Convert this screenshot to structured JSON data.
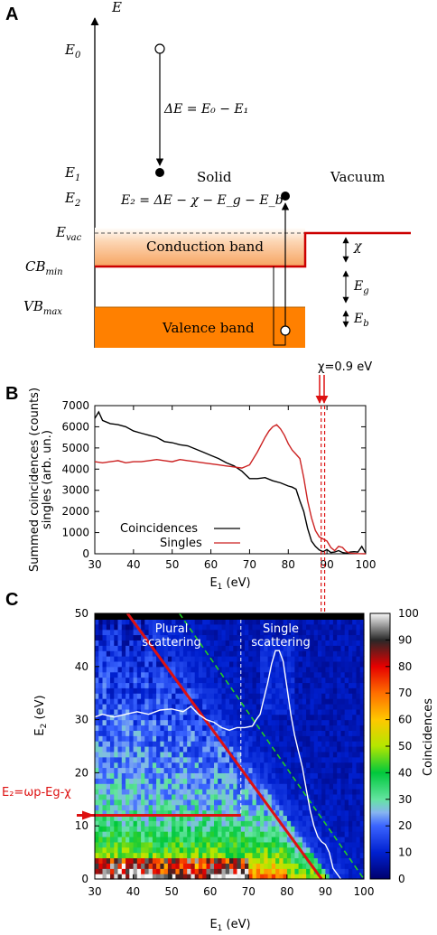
{
  "panels": {
    "a": "A",
    "b": "B",
    "c": "C"
  },
  "panel_a": {
    "axis_label": "E",
    "levels": {
      "e0": "E",
      "e0_sub": "0",
      "e1": "E",
      "e1_sub": "1",
      "e2": "E",
      "e2_sub": "2",
      "evac": "E",
      "evac_sub": "vac",
      "cbmin": "CB",
      "cbmin_sub": "min",
      "vbmax": "VB",
      "vbmax_sub": "max"
    },
    "delta_e_eq": "ΔE = E₀ − E₁",
    "e2_eq": "E₂ = ΔE − χ − E_g − E_b",
    "region_solid": "Solid",
    "region_vacuum": "Vacuum",
    "conduction_band": "Conduction band",
    "valence_band": "Valence band",
    "chi": "χ",
    "eg": "E",
    "eg_sub": "g",
    "eb": "E",
    "eb_sub": "b",
    "chi_annotation": "χ=0.9 eV"
  },
  "chart_data": [
    {
      "type": "line",
      "panel": "B",
      "ylabel_line1": "Summed coincidences (counts)",
      "ylabel_line2": "singles (arb. un.)",
      "xlabel": "E",
      "xlabel_sub": "1",
      "xlabel_unit": " (eV)",
      "xlim": [
        30,
        100
      ],
      "ylim": [
        0,
        7000
      ],
      "xticks": [
        "30",
        "40",
        "50",
        "60",
        "70",
        "80",
        "90",
        "100"
      ],
      "yticks": [
        "0",
        "1000",
        "2000",
        "3000",
        "4000",
        "5000",
        "6000",
        "7000"
      ],
      "legend_position": "bottom-left",
      "series": [
        {
          "name": "Coincidences",
          "color": "#000000",
          "x": [
            30,
            31,
            32,
            34,
            36,
            38,
            40,
            42,
            44,
            46,
            48,
            50,
            52,
            54,
            56,
            58,
            60,
            62,
            64,
            66,
            68,
            70,
            72,
            74,
            76,
            78,
            80,
            81,
            82,
            83,
            84,
            85,
            86,
            87,
            88,
            89,
            90,
            91,
            92,
            93,
            94,
            95,
            96,
            97,
            98,
            99,
            100
          ],
          "values": [
            6400,
            6700,
            6300,
            6150,
            6100,
            6000,
            5800,
            5700,
            5600,
            5500,
            5300,
            5250,
            5150,
            5100,
            4950,
            4800,
            4650,
            4500,
            4300,
            4150,
            3900,
            3550,
            3550,
            3600,
            3450,
            3350,
            3200,
            3150,
            3050,
            2500,
            2000,
            1200,
            600,
            350,
            180,
            100,
            200,
            60,
            80,
            150,
            60,
            30,
            80,
            100,
            80,
            350,
            20
          ]
        },
        {
          "name": "Singles",
          "color": "#cc2222",
          "x": [
            30,
            32,
            34,
            36,
            38,
            40,
            42,
            44,
            46,
            48,
            50,
            52,
            54,
            56,
            58,
            60,
            62,
            64,
            66,
            68,
            70,
            72,
            74,
            75,
            76,
            77,
            78,
            79,
            80,
            81,
            82,
            83,
            84,
            85,
            86,
            87,
            88,
            89,
            90,
            91,
            92,
            93,
            94,
            95,
            96,
            98,
            100
          ],
          "values": [
            4350,
            4300,
            4350,
            4400,
            4300,
            4350,
            4350,
            4400,
            4450,
            4400,
            4350,
            4450,
            4400,
            4350,
            4300,
            4250,
            4200,
            4150,
            4100,
            4050,
            4200,
            4800,
            5500,
            5800,
            6000,
            6100,
            5900,
            5600,
            5200,
            4900,
            4700,
            4500,
            3600,
            2500,
            1700,
            1100,
            800,
            700,
            600,
            300,
            150,
            350,
            300,
            100,
            30,
            10,
            0
          ]
        }
      ],
      "chi_lines_x": [
        88.5,
        89.4
      ]
    },
    {
      "type": "heatmap",
      "panel": "C",
      "xlabel": "E",
      "xlabel_sub": "1",
      "xlabel_unit": " (eV)",
      "ylabel": "E",
      "ylabel_sub": "2",
      "ylabel_unit": " (eV)",
      "xlim": [
        30,
        100
      ],
      "ylim": [
        0,
        50
      ],
      "xticks": [
        "30",
        "40",
        "50",
        "60",
        "70",
        "80",
        "90",
        "100"
      ],
      "yticks": [
        "0",
        "10",
        "20",
        "30",
        "40",
        "50"
      ],
      "colorbar_label": "Coincidences",
      "colorbar_range": [
        0,
        100
      ],
      "colorbar_ticks": [
        "0",
        "10",
        "20",
        "30",
        "40",
        "50",
        "60",
        "70",
        "80",
        "90",
        "100"
      ],
      "region_labels": {
        "plural_line1": "Plural",
        "plural_line2": "scattering",
        "single_line1": "Single",
        "single_line2": "scattering"
      },
      "plural_single_boundary_x": 68,
      "main_kinematic_line": {
        "x": [
          38.5,
          89
        ],
        "y": [
          50,
          0
        ]
      },
      "dashed_green_line": {
        "x": [
          52,
          100
        ],
        "y": [
          50,
          0
        ]
      },
      "plasmon_arrow": {
        "label": "E₂=ωp-Eg-χ",
        "y": 12,
        "x_start": 30,
        "x_end": 68
      },
      "white_projection": {
        "x": [
          30,
          32,
          35,
          38,
          41,
          44,
          47,
          50,
          53,
          55,
          57,
          59,
          61,
          63,
          65,
          67,
          69,
          71,
          72,
          73,
          74,
          75,
          76,
          77,
          78,
          79,
          80,
          81,
          82,
          83,
          84,
          85,
          86,
          87,
          88,
          89,
          90,
          91,
          92,
          93,
          94
        ],
        "values": [
          30.5,
          31,
          30.5,
          31,
          31.5,
          31,
          31.8,
          32,
          31.5,
          32.5,
          31,
          30,
          29.5,
          28.5,
          28,
          28.5,
          28.5,
          28.8,
          30,
          31,
          34,
          37,
          40.5,
          43,
          43,
          41,
          36,
          31,
          27,
          24,
          21,
          17,
          13,
          10,
          8,
          7,
          6.5,
          5,
          2,
          1,
          0
        ]
      }
    }
  ],
  "colors": {
    "red": "#dd1111",
    "orange": "#ff8000",
    "dark_red_line": "#cc0000",
    "green_dash": "#22cc22"
  }
}
